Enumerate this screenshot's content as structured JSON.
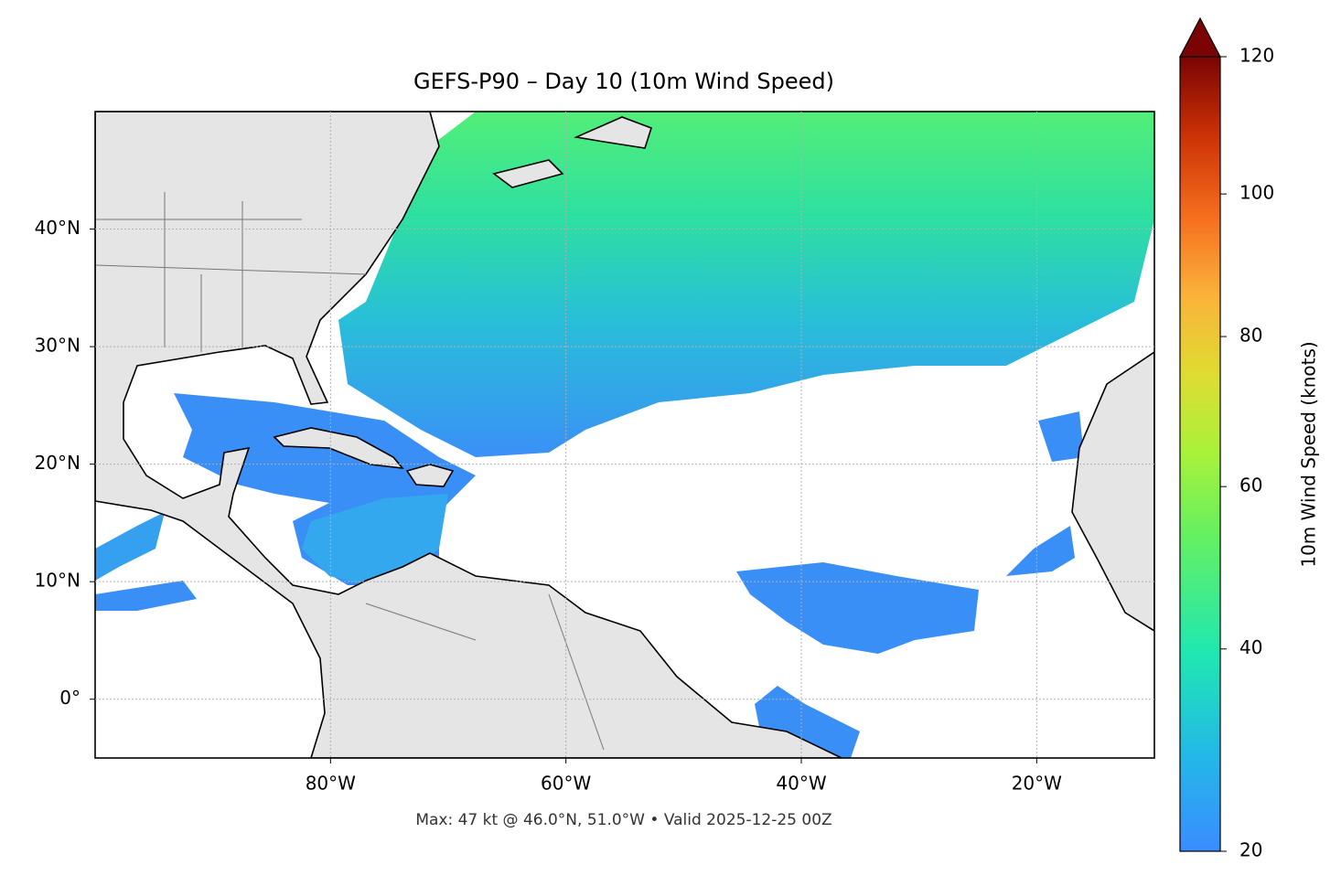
{
  "chart_data": {
    "type": "map",
    "title": "GEFS-P90 – Day 10 (10m Wind Speed)",
    "annotation": "Max: 47 kt @ 46.0°N, 51.0°W • Valid 2025-12-25 00Z",
    "xlim": [
      -100,
      -10
    ],
    "ylim": [
      -5,
      50
    ],
    "xticks": [
      {
        "value": -80,
        "label": "80°W"
      },
      {
        "value": -60,
        "label": "60°W"
      },
      {
        "value": -40,
        "label": "40°W"
      },
      {
        "value": -20,
        "label": "20°W"
      }
    ],
    "yticks": [
      {
        "value": 0,
        "label": "0°"
      },
      {
        "value": 10,
        "label": "10°N"
      },
      {
        "value": 20,
        "label": "20°N"
      },
      {
        "value": 30,
        "label": "30°N"
      },
      {
        "value": 40,
        "label": "40°N"
      }
    ],
    "grid": true,
    "colorbar": {
      "label": "10m Wind Speed (knots)",
      "lim": [
        20,
        120
      ],
      "ticks": [
        20,
        40,
        60,
        80,
        100,
        120
      ],
      "norm": "power",
      "gamma": 0.85
    }
  }
}
